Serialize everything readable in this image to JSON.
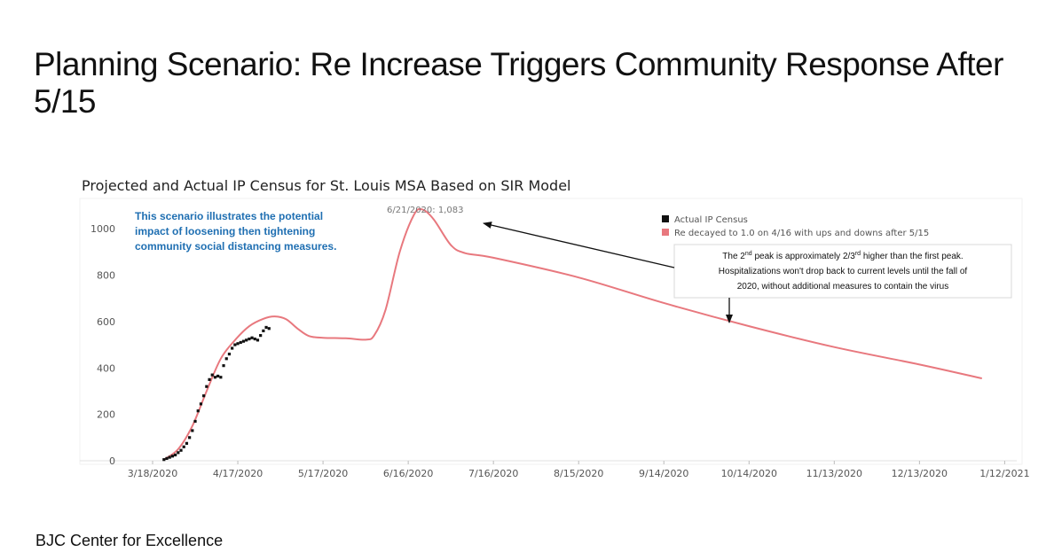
{
  "slide": {
    "title_lead": "Planning Scenario:",
    "title_rest": " Re Increase Triggers Community Response After 5/15",
    "footer": "BJC Center for Excellence"
  },
  "chart_data": {
    "type": "line",
    "title": "Projected and Actual IP Census for St. Louis MSA Based on SIR Model",
    "xlabel": "",
    "ylabel": "",
    "x_axis_type": "date",
    "xlim": [
      "2020-03-08",
      "2021-01-15"
    ],
    "ylim": [
      0,
      1100
    ],
    "yticks": [
      0,
      200,
      400,
      600,
      800,
      1000
    ],
    "xticks": [
      {
        "date": "2020-03-18",
        "label": "3/18/2020"
      },
      {
        "date": "2020-04-17",
        "label": "4/17/2020"
      },
      {
        "date": "2020-05-17",
        "label": "5/17/2020"
      },
      {
        "date": "2020-06-16",
        "label": "6/16/2020"
      },
      {
        "date": "2020-07-16",
        "label": "7/16/2020"
      },
      {
        "date": "2020-08-15",
        "label": "8/15/2020"
      },
      {
        "date": "2020-09-14",
        "label": "9/14/2020"
      },
      {
        "date": "2020-10-14",
        "label": "10/14/2020"
      },
      {
        "date": "2020-11-13",
        "label": "11/13/2020"
      },
      {
        "date": "2020-12-13",
        "label": "12/13/2020"
      },
      {
        "date": "2021-01-12",
        "label": "1/12/2021"
      }
    ],
    "grid": false,
    "legend_position": "top-right",
    "series": [
      {
        "name": "Re decayed to 1.0 on 4/16 with ups and downs after 5/15",
        "color": "#e8787e",
        "kind": "line",
        "points": [
          [
            "2020-03-22",
            5
          ],
          [
            "2020-03-27",
            50
          ],
          [
            "2020-04-01",
            150
          ],
          [
            "2020-04-06",
            300
          ],
          [
            "2020-04-11",
            440
          ],
          [
            "2020-04-16",
            520
          ],
          [
            "2020-04-21",
            580
          ],
          [
            "2020-04-26",
            612
          ],
          [
            "2020-04-30",
            622
          ],
          [
            "2020-05-04",
            610
          ],
          [
            "2020-05-08",
            570
          ],
          [
            "2020-05-12",
            538
          ],
          [
            "2020-05-17",
            530
          ],
          [
            "2020-05-25",
            528
          ],
          [
            "2020-06-01",
            522
          ],
          [
            "2020-06-04",
            540
          ],
          [
            "2020-06-08",
            650
          ],
          [
            "2020-06-13",
            900
          ],
          [
            "2020-06-18",
            1060
          ],
          [
            "2020-06-21",
            1083
          ],
          [
            "2020-06-25",
            1040
          ],
          [
            "2020-07-01",
            930
          ],
          [
            "2020-07-06",
            895
          ],
          [
            "2020-07-16",
            875
          ],
          [
            "2020-08-15",
            790
          ],
          [
            "2020-09-14",
            680
          ],
          [
            "2020-10-14",
            580
          ],
          [
            "2020-11-13",
            490
          ],
          [
            "2020-12-13",
            415
          ],
          [
            "2021-01-04",
            355
          ]
        ]
      },
      {
        "name": "Actual IP Census",
        "color": "#111111",
        "kind": "points",
        "points": [
          [
            "2020-03-22",
            5
          ],
          [
            "2020-03-23",
            10
          ],
          [
            "2020-03-24",
            15
          ],
          [
            "2020-03-25",
            20
          ],
          [
            "2020-03-26",
            25
          ],
          [
            "2020-03-27",
            35
          ],
          [
            "2020-03-28",
            45
          ],
          [
            "2020-03-29",
            60
          ],
          [
            "2020-03-30",
            75
          ],
          [
            "2020-03-31",
            100
          ],
          [
            "2020-04-01",
            130
          ],
          [
            "2020-04-02",
            170
          ],
          [
            "2020-04-03",
            215
          ],
          [
            "2020-04-04",
            245
          ],
          [
            "2020-04-05",
            280
          ],
          [
            "2020-04-06",
            320
          ],
          [
            "2020-04-07",
            350
          ],
          [
            "2020-04-08",
            370
          ],
          [
            "2020-04-09",
            360
          ],
          [
            "2020-04-10",
            365
          ],
          [
            "2020-04-11",
            360
          ],
          [
            "2020-04-12",
            410
          ],
          [
            "2020-04-13",
            440
          ],
          [
            "2020-04-14",
            460
          ],
          [
            "2020-04-15",
            485
          ],
          [
            "2020-04-16",
            500
          ],
          [
            "2020-04-17",
            505
          ],
          [
            "2020-04-18",
            510
          ],
          [
            "2020-04-19",
            515
          ],
          [
            "2020-04-20",
            520
          ],
          [
            "2020-04-21",
            525
          ],
          [
            "2020-04-22",
            530
          ],
          [
            "2020-04-23",
            525
          ],
          [
            "2020-04-24",
            520
          ],
          [
            "2020-04-25",
            540
          ],
          [
            "2020-04-26",
            560
          ],
          [
            "2020-04-27",
            575
          ],
          [
            "2020-04-28",
            570
          ]
        ]
      }
    ],
    "annotations": {
      "peak_label": "6/21/2020: 1,083",
      "note_lines": [
        "This scenario illustrates the potential",
        "impact of loosening then tightening",
        "community social distancing measures."
      ],
      "callout": {
        "line1_pre": "The 2",
        "line1_sup1": "nd",
        "line1_mid": " peak is approximately 2/3",
        "line1_sup2": "rd",
        "line1_post": " higher than the first peak.",
        "line2": "Hospitalizations won't drop back to current levels until the fall of",
        "line3": "2020, without additional measures to contain the virus"
      }
    }
  }
}
